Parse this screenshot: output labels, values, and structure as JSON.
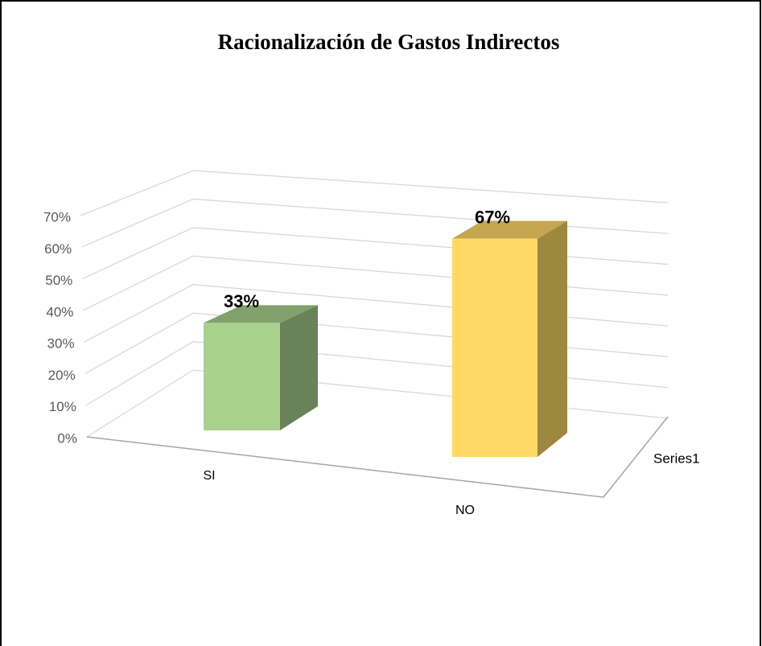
{
  "chart_data": {
    "type": "bar3d",
    "title": "Racionalización de Gastos Indirectos",
    "categories": [
      "SI",
      "NO"
    ],
    "series": [
      {
        "name": "Series1",
        "values": [
          33,
          67
        ],
        "value_labels": [
          "33%",
          "67%"
        ],
        "colors": [
          "#a9d18e",
          "#ffd966"
        ]
      }
    ],
    "ylim": [
      0,
      70
    ],
    "yticks": [
      {
        "value": 0,
        "label": "0%"
      },
      {
        "value": 10,
        "label": "10%"
      },
      {
        "value": 20,
        "label": "20%"
      },
      {
        "value": 30,
        "label": "30%"
      },
      {
        "value": 40,
        "label": "40%"
      },
      {
        "value": 50,
        "label": "50%"
      },
      {
        "value": 60,
        "label": "60%"
      },
      {
        "value": 70,
        "label": "70%"
      }
    ],
    "grid": true
  }
}
